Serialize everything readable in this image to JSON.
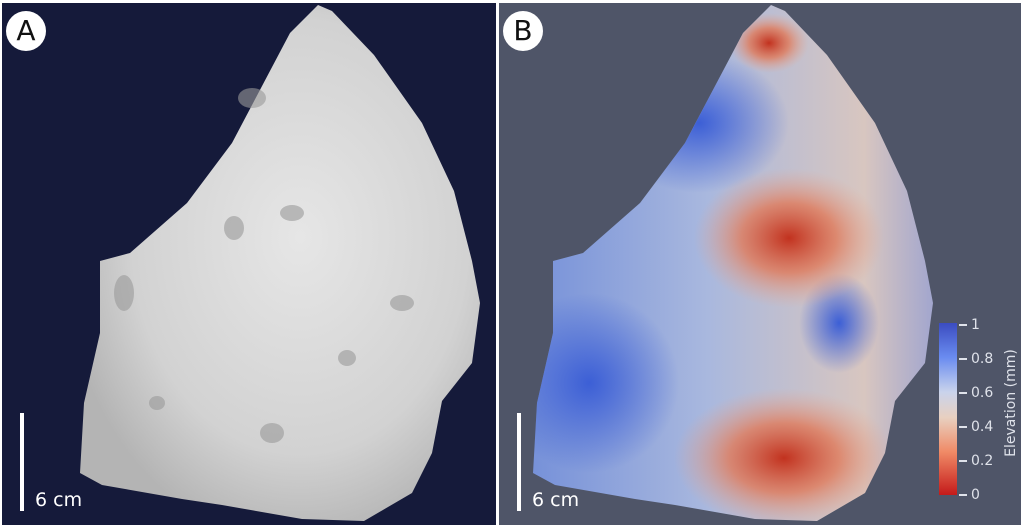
{
  "panels": [
    {
      "label": "A",
      "scale_bar": "6 cm",
      "background": "#151a3a"
    },
    {
      "label": "B",
      "scale_bar": "6 cm",
      "background": "#4f5568"
    }
  ],
  "colorbar": {
    "title": "Elevation (mm)",
    "ticks": [
      "1",
      "0.8",
      "0.6",
      "0.4",
      "0.2",
      "0"
    ],
    "colormap": "coolwarm (blue high, red low)",
    "range": [
      0,
      1
    ]
  }
}
